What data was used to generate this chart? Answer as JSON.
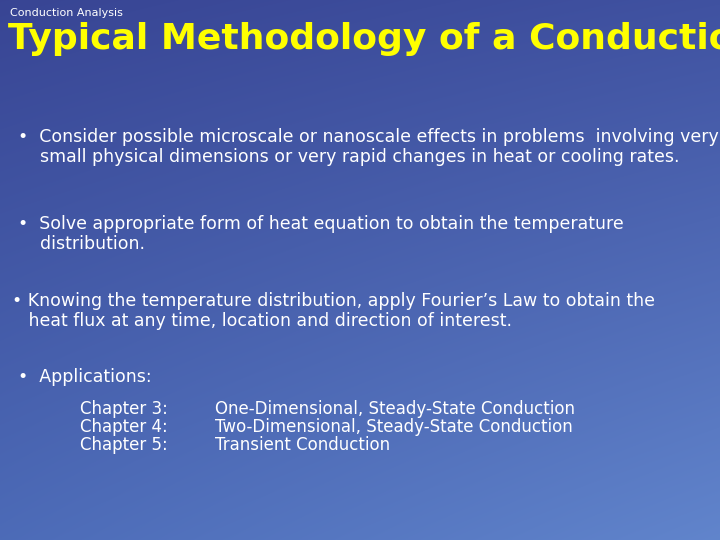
{
  "header_text": "Conduction Analysis",
  "title": "Typical Methodology of a Conduction Analysis",
  "bullet1_line1": "•  Consider possible microscale or nanoscale effects in problems  involving very",
  "bullet1_line2": "    small physical dimensions or very rapid changes in heat or cooling rates.",
  "bullet2_line1": "•  Solve appropriate form of heat equation to obtain the temperature",
  "bullet2_line2": "    distribution.",
  "bullet3_line1": "• Knowing the temperature distribution, apply Fourier’s Law to obtain the",
  "bullet3_line2": "   heat flux at any time, location and direction of interest.",
  "bullet4": "•  Applications:",
  "chapter3_label": "Chapter 3:",
  "chapter3_text": "One-Dimensional, Steady-State Conduction",
  "chapter4_label": "Chapter 4:",
  "chapter4_text": "Two-Dimensional, Steady-State Conduction",
  "chapter5_label": "Chapter 5:",
  "chapter5_text": "Transient Conduction",
  "header_color": "#ffffff",
  "title_color": "#ffff00",
  "body_color": "#ffffff",
  "chapter_color": "#ffffff",
  "header_fontsize": 8,
  "title_fontsize": 26,
  "body_fontsize": 12.5,
  "chapter_fontsize": 12,
  "bg_topleft": [
    0.22,
    0.27,
    0.58
  ],
  "bg_topright": [
    0.25,
    0.32,
    0.63
  ],
  "bg_bottomleft": [
    0.3,
    0.42,
    0.72
  ],
  "bg_bottomright": [
    0.38,
    0.52,
    0.8
  ]
}
